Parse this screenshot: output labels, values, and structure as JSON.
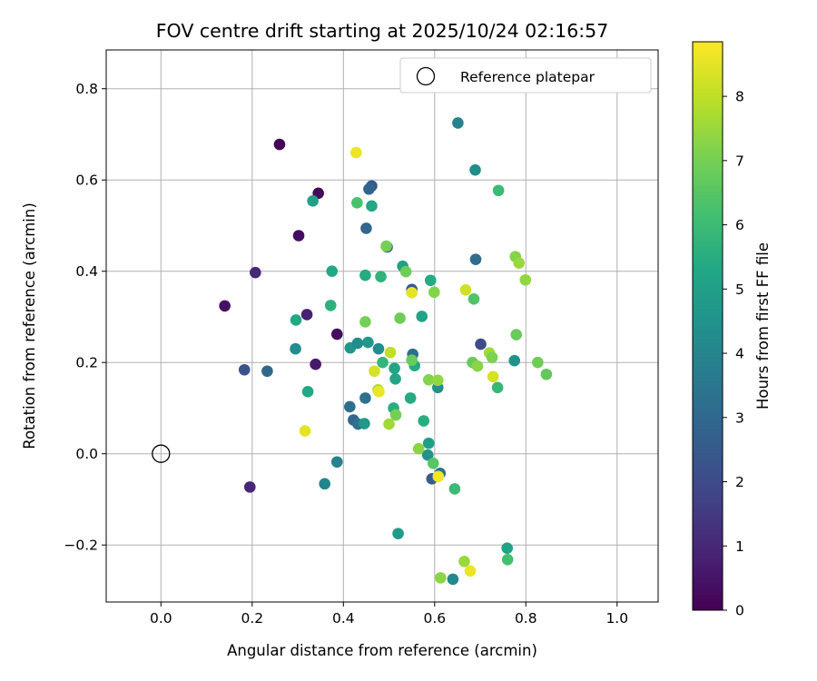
{
  "chart_data": {
    "type": "scatter",
    "title": "FOV centre drift starting at 2025/10/24 02:16:57",
    "xlabel": "Angular distance from reference (arcmin)",
    "ylabel": "Rotation from reference (arcmin)",
    "xlim": [
      -0.12,
      1.09
    ],
    "ylim": [
      -0.325,
      0.885
    ],
    "xticks": [
      0.0,
      0.2,
      0.4,
      0.6,
      0.8,
      1.0
    ],
    "xtick_labels": [
      "0.0",
      "0.2",
      "0.4",
      "0.6",
      "0.8",
      "1.0"
    ],
    "yticks": [
      -0.2,
      0.0,
      0.2,
      0.4,
      0.6,
      0.8
    ],
    "ytick_labels": [
      "−0.2",
      "0.0",
      "0.2",
      "0.4",
      "0.6",
      "0.8"
    ],
    "grid": true,
    "legend": {
      "placement": "top-right",
      "entries": [
        "Reference platepar"
      ]
    },
    "reference_point": {
      "x": 0.0,
      "y": 0.0,
      "marker": "hollow-circle",
      "label": "Reference platepar"
    },
    "colorbar": {
      "label": "Hours from first FF file",
      "colormap": "viridis",
      "range": [
        0,
        8.85
      ],
      "ticks": [
        0,
        1,
        2,
        3,
        4,
        5,
        6,
        7,
        8
      ],
      "tick_labels": [
        "0",
        "1",
        "2",
        "3",
        "4",
        "5",
        "6",
        "7",
        "8"
      ]
    },
    "points": [
      {
        "x": 0.26,
        "y": 0.678,
        "h": 0.1
      },
      {
        "x": 0.345,
        "y": 0.571,
        "h": 0.2
      },
      {
        "x": 0.302,
        "y": 0.478,
        "h": 0.3
      },
      {
        "x": 0.207,
        "y": 0.397,
        "h": 1.0
      },
      {
        "x": 0.14,
        "y": 0.324,
        "h": 0.4
      },
      {
        "x": 0.32,
        "y": 0.305,
        "h": 0.8
      },
      {
        "x": 0.386,
        "y": 0.262,
        "h": 0.3
      },
      {
        "x": 0.339,
        "y": 0.196,
        "h": 0.6
      },
      {
        "x": 0.195,
        "y": -0.073,
        "h": 1.0
      },
      {
        "x": 0.183,
        "y": 0.184,
        "h": 2.3
      },
      {
        "x": 0.233,
        "y": 0.181,
        "h": 3.0
      },
      {
        "x": 0.462,
        "y": 0.587,
        "h": 2.5
      },
      {
        "x": 0.456,
        "y": 0.58,
        "h": 2.8
      },
      {
        "x": 0.45,
        "y": 0.494,
        "h": 2.9
      },
      {
        "x": 0.496,
        "y": 0.453,
        "h": 2.7
      },
      {
        "x": 0.55,
        "y": 0.36,
        "h": 2.4
      },
      {
        "x": 0.552,
        "y": 0.218,
        "h": 3.1
      },
      {
        "x": 0.701,
        "y": 0.24,
        "h": 2.0
      },
      {
        "x": 0.69,
        "y": 0.426,
        "h": 3.1
      },
      {
        "x": 0.651,
        "y": 0.725,
        "h": 3.9
      },
      {
        "x": 0.689,
        "y": 0.622,
        "h": 4.3
      },
      {
        "x": 0.333,
        "y": 0.554,
        "h": 5.0
      },
      {
        "x": 0.462,
        "y": 0.543,
        "h": 5.3
      },
      {
        "x": 0.375,
        "y": 0.4,
        "h": 5.3
      },
      {
        "x": 0.372,
        "y": 0.325,
        "h": 5.6
      },
      {
        "x": 0.296,
        "y": 0.293,
        "h": 5.3
      },
      {
        "x": 0.295,
        "y": 0.23,
        "h": 4.3
      },
      {
        "x": 0.322,
        "y": 0.136,
        "h": 5.3
      },
      {
        "x": 0.386,
        "y": -0.018,
        "h": 3.9
      },
      {
        "x": 0.359,
        "y": -0.066,
        "h": 4.0
      },
      {
        "x": 0.415,
        "y": 0.232,
        "h": 4.6
      },
      {
        "x": 0.431,
        "y": 0.242,
        "h": 4.3
      },
      {
        "x": 0.454,
        "y": 0.244,
        "h": 4.7
      },
      {
        "x": 0.477,
        "y": 0.23,
        "h": 4.3
      },
      {
        "x": 0.414,
        "y": 0.103,
        "h": 3.2
      },
      {
        "x": 0.448,
        "y": 0.122,
        "h": 3.3
      },
      {
        "x": 0.422,
        "y": 0.074,
        "h": 2.9
      },
      {
        "x": 0.432,
        "y": 0.065,
        "h": 3.3
      },
      {
        "x": 0.446,
        "y": 0.066,
        "h": 4.7
      },
      {
        "x": 0.448,
        "y": 0.391,
        "h": 5.4
      },
      {
        "x": 0.482,
        "y": 0.388,
        "h": 5.7
      },
      {
        "x": 0.53,
        "y": 0.411,
        "h": 5.0
      },
      {
        "x": 0.591,
        "y": 0.38,
        "h": 5.4
      },
      {
        "x": 0.572,
        "y": 0.301,
        "h": 5.1
      },
      {
        "x": 0.486,
        "y": 0.2,
        "h": 5.8
      },
      {
        "x": 0.512,
        "y": 0.187,
        "h": 5.2
      },
      {
        "x": 0.556,
        "y": 0.193,
        "h": 5.4
      },
      {
        "x": 0.514,
        "y": 0.164,
        "h": 5.2
      },
      {
        "x": 0.51,
        "y": 0.1,
        "h": 5.5
      },
      {
        "x": 0.547,
        "y": 0.122,
        "h": 5.4
      },
      {
        "x": 0.576,
        "y": 0.072,
        "h": 5.5
      },
      {
        "x": 0.587,
        "y": 0.023,
        "h": 5.0
      },
      {
        "x": 0.585,
        "y": -0.003,
        "h": 4.5
      },
      {
        "x": 0.612,
        "y": -0.043,
        "h": 3.3
      },
      {
        "x": 0.594,
        "y": -0.055,
        "h": 2.6
      },
      {
        "x": 0.607,
        "y": 0.145,
        "h": 4.4
      },
      {
        "x": 0.644,
        "y": -0.077,
        "h": 6.0
      },
      {
        "x": 0.52,
        "y": -0.175,
        "h": 4.8
      },
      {
        "x": 0.64,
        "y": -0.275,
        "h": 4.1
      },
      {
        "x": 0.74,
        "y": 0.577,
        "h": 6.0
      },
      {
        "x": 0.686,
        "y": 0.339,
        "h": 6.4
      },
      {
        "x": 0.738,
        "y": 0.145,
        "h": 5.9
      },
      {
        "x": 0.775,
        "y": 0.204,
        "h": 4.5
      },
      {
        "x": 0.759,
        "y": -0.207,
        "h": 5.1
      },
      {
        "x": 0.76,
        "y": -0.232,
        "h": 6.2
      },
      {
        "x": 0.43,
        "y": 0.55,
        "h": 6.3
      },
      {
        "x": 0.494,
        "y": 0.455,
        "h": 7.0
      },
      {
        "x": 0.537,
        "y": 0.399,
        "h": 6.9
      },
      {
        "x": 0.599,
        "y": 0.354,
        "h": 7.2
      },
      {
        "x": 0.448,
        "y": 0.289,
        "h": 7.0
      },
      {
        "x": 0.524,
        "y": 0.297,
        "h": 6.9
      },
      {
        "x": 0.55,
        "y": 0.205,
        "h": 6.8
      },
      {
        "x": 0.587,
        "y": 0.162,
        "h": 7.2
      },
      {
        "x": 0.607,
        "y": 0.161,
        "h": 7.4
      },
      {
        "x": 0.515,
        "y": 0.085,
        "h": 7.0
      },
      {
        "x": 0.5,
        "y": 0.065,
        "h": 7.6
      },
      {
        "x": 0.565,
        "y": 0.011,
        "h": 7.3
      },
      {
        "x": 0.597,
        "y": -0.021,
        "h": 6.5
      },
      {
        "x": 0.613,
        "y": -0.272,
        "h": 7.3
      },
      {
        "x": 0.665,
        "y": -0.236,
        "h": 7.5
      },
      {
        "x": 0.683,
        "y": 0.2,
        "h": 6.8
      },
      {
        "x": 0.694,
        "y": 0.192,
        "h": 7.3
      },
      {
        "x": 0.72,
        "y": 0.221,
        "h": 7.6
      },
      {
        "x": 0.726,
        "y": 0.211,
        "h": 7.1
      },
      {
        "x": 0.777,
        "y": 0.432,
        "h": 7.2
      },
      {
        "x": 0.785,
        "y": 0.418,
        "h": 7.5
      },
      {
        "x": 0.799,
        "y": 0.381,
        "h": 7.4
      },
      {
        "x": 0.779,
        "y": 0.261,
        "h": 6.8
      },
      {
        "x": 0.826,
        "y": 0.2,
        "h": 6.9
      },
      {
        "x": 0.845,
        "y": 0.174,
        "h": 6.7
      },
      {
        "x": 0.428,
        "y": 0.66,
        "h": 8.6
      },
      {
        "x": 0.55,
        "y": 0.353,
        "h": 8.5
      },
      {
        "x": 0.668,
        "y": 0.359,
        "h": 8.2
      },
      {
        "x": 0.468,
        "y": 0.181,
        "h": 8.3
      },
      {
        "x": 0.503,
        "y": 0.222,
        "h": 8.0
      },
      {
        "x": 0.476,
        "y": 0.14,
        "h": 7.8
      },
      {
        "x": 0.478,
        "y": 0.136,
        "h": 8.6
      },
      {
        "x": 0.316,
        "y": 0.05,
        "h": 8.5
      },
      {
        "x": 0.608,
        "y": -0.05,
        "h": 8.7
      },
      {
        "x": 0.728,
        "y": 0.169,
        "h": 8.3
      },
      {
        "x": 0.678,
        "y": -0.257,
        "h": 8.6
      }
    ]
  }
}
